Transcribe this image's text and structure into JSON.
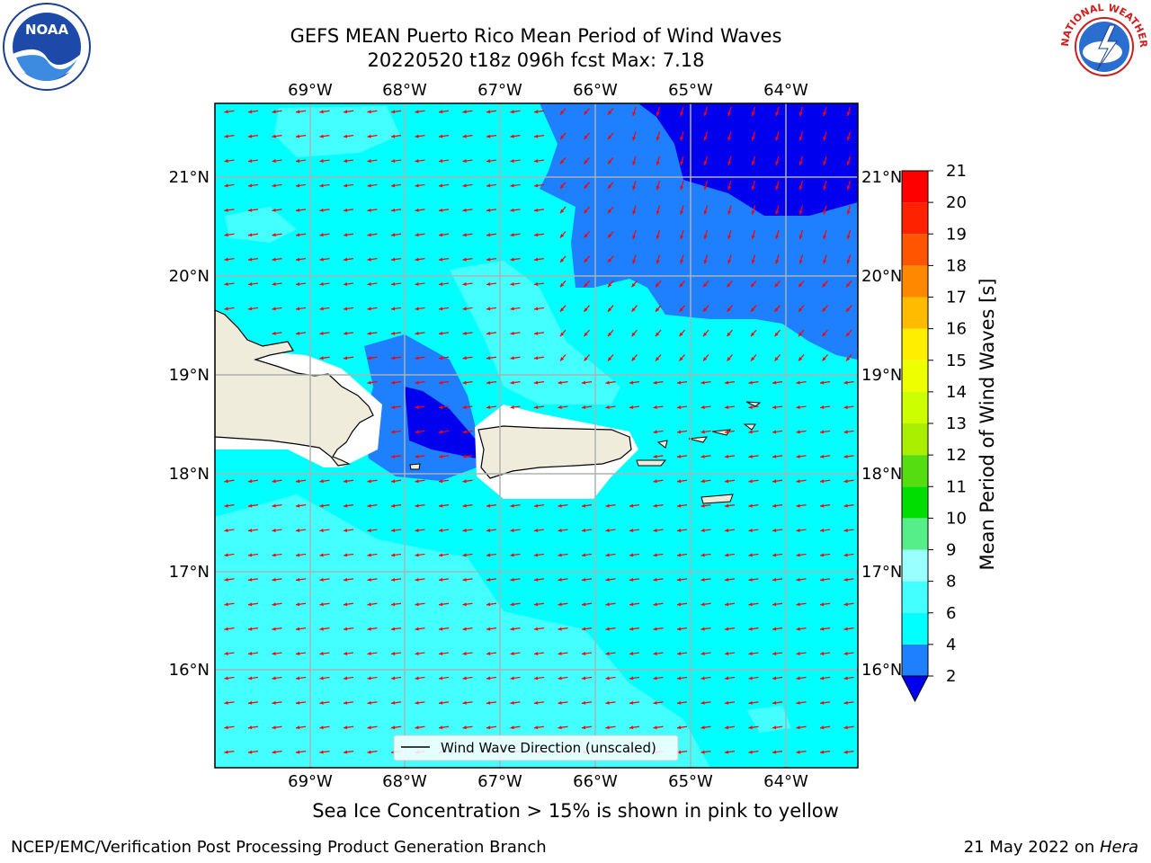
{
  "header": {
    "title_line1": "GEFS MEAN Puerto Rico Mean Period of Wind Waves",
    "title_line2": "20220520 t18z 096h fcst   Max: 7.18"
  },
  "logos": {
    "noara_text": "NOAA",
    "nws_text": "NATIONAL WEATHER SERVICE"
  },
  "map": {
    "lon_labels": [
      "69°W",
      "68°W",
      "67°W",
      "66°W",
      "65°W",
      "64°W"
    ],
    "lat_labels": [
      "21°N",
      "20°N",
      "19°N",
      "18°N",
      "17°N",
      "16°N"
    ],
    "legend_label": "Wind Wave Direction (unscaled)",
    "arrow_color": "#ff0000",
    "land_color": "#efecdc",
    "grid_color": "#b0b0b0"
  },
  "colorbar": {
    "label": "Mean Period of Wind Waves [s]",
    "ticks": [
      "2",
      "4",
      "6",
      "8",
      "9",
      "10",
      "11",
      "12",
      "13",
      "14",
      "15",
      "16",
      "17",
      "18",
      "19",
      "20",
      "21"
    ],
    "colors": [
      "#0000ee",
      "#1e7fff",
      "#00ffff",
      "#44ffff",
      "#99ffff",
      "#55ee88",
      "#00dd00",
      "#55dd11",
      "#aaee00",
      "#ccff00",
      "#eeff00",
      "#ffee00",
      "#ffbb00",
      "#ff8800",
      "#ff5500",
      "#ff2200",
      "#ff0000"
    ]
  },
  "footer": {
    "note": "Sea Ice Concentration > 15% is shown in pink to yellow",
    "left": "NCEP/EMC/Verification Post Processing Product Generation Branch",
    "right_date": "21 May 2022 on ",
    "right_host": "Hera"
  }
}
